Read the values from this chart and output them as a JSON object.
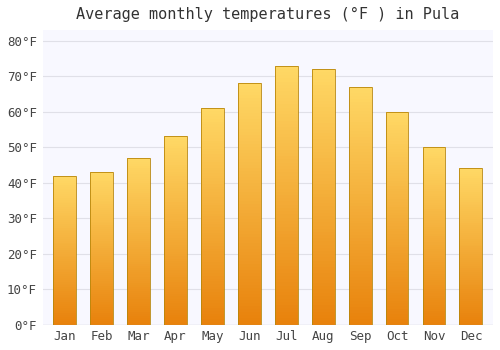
{
  "title": "Average monthly temperatures (°F ) in Pula",
  "months": [
    "Jan",
    "Feb",
    "Mar",
    "Apr",
    "May",
    "Jun",
    "Jul",
    "Aug",
    "Sep",
    "Oct",
    "Nov",
    "Dec"
  ],
  "values": [
    42,
    43,
    47,
    53,
    61,
    68,
    73,
    72,
    67,
    60,
    50,
    44
  ],
  "bar_color_bottom": "#E8820C",
  "bar_color_top": "#FFD966",
  "bar_edge_color": "#B8860B",
  "background_color": "#FFFFFF",
  "plot_bg_color": "#F8F8FF",
  "grid_color": "#E0E0E8",
  "text_color": "#444444",
  "title_color": "#333333",
  "ylim": [
    0,
    83
  ],
  "yticks": [
    0,
    10,
    20,
    30,
    40,
    50,
    60,
    70,
    80
  ],
  "title_fontsize": 11,
  "tick_fontsize": 9,
  "bar_width": 0.62
}
